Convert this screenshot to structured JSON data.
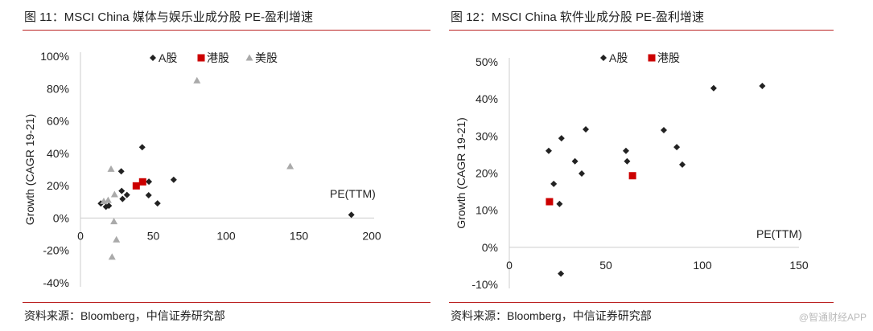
{
  "chart_data": [
    {
      "type": "scatter",
      "title": "图 11：MSCI China 媒体与娱乐业成分股 PE-盈利增速",
      "xlabel": "PE(TTM)",
      "ylabel": "Growth (CAGR 19-21)",
      "xlim": [
        0,
        200
      ],
      "ylim": [
        -40,
        100
      ],
      "xticks": [
        0,
        50,
        100,
        150,
        200
      ],
      "yticks": [
        -40,
        -20,
        0,
        20,
        40,
        60,
        80,
        100
      ],
      "ytick_labels": [
        "-40%",
        "-20%",
        "0%",
        "20%",
        "40%",
        "60%",
        "80%",
        "100%"
      ],
      "legend_position": "top",
      "series": [
        {
          "name": "A股",
          "color": "#222222",
          "marker": "diamond",
          "points": [
            [
              42.4,
              43.8
            ],
            [
              28,
              28.9
            ],
            [
              47,
              22.5
            ],
            [
              64,
              23.7
            ],
            [
              28.3,
              16.8
            ],
            [
              31.9,
              14.3
            ],
            [
              28.9,
              11.8
            ],
            [
              46.8,
              14.1
            ],
            [
              52.9,
              9.1
            ],
            [
              14,
              9
            ],
            [
              17.5,
              7
            ],
            [
              19.5,
              7.6
            ],
            [
              186,
              2
            ]
          ]
        },
        {
          "name": "港股",
          "color": "#cc0000",
          "marker": "square",
          "points": [
            [
              38.3,
              19.9
            ],
            [
              42.7,
              22.4
            ]
          ]
        },
        {
          "name": "美股",
          "color": "#aaaaaa",
          "marker": "triangle",
          "points": [
            [
              21,
              30.3
            ],
            [
              23.4,
              14.6
            ],
            [
              16,
              10.4
            ],
            [
              19,
              11.1
            ],
            [
              23,
              -2.1
            ],
            [
              24.7,
              -13.3
            ],
            [
              21.7,
              -24
            ],
            [
              80,
              85
            ],
            [
              144,
              32
            ]
          ]
        }
      ]
    },
    {
      "type": "scatter",
      "title": "图 12：MSCI China 软件业成分股 PE-盈利增速",
      "xlabel": "PE(TTM)",
      "ylabel": "Growth (CAGR 19-21)",
      "xlim": [
        0,
        150
      ],
      "ylim": [
        -10,
        50
      ],
      "xticks": [
        0,
        50,
        100,
        150
      ],
      "yticks": [
        -10,
        0,
        10,
        20,
        30,
        40,
        50
      ],
      "ytick_labels": [
        "-10%",
        "0%",
        "10%",
        "20%",
        "30%",
        "40%",
        "50%"
      ],
      "legend_position": "top",
      "series": [
        {
          "name": "A股",
          "color": "#222222",
          "marker": "diamond",
          "points": [
            [
              20.4,
              26
            ],
            [
              23,
              17.1
            ],
            [
              26,
              11.7
            ],
            [
              27,
              29.4
            ],
            [
              34,
              23.2
            ],
            [
              37.5,
              19.9
            ],
            [
              39.6,
              31.8
            ],
            [
              60.4,
              26
            ],
            [
              61,
              23.2
            ],
            [
              80,
              31.6
            ],
            [
              86.7,
              27
            ],
            [
              89.6,
              22.3
            ],
            [
              105.8,
              42.9
            ],
            [
              131,
              43.5
            ],
            [
              26.7,
              -7.1
            ]
          ]
        },
        {
          "name": "港股",
          "color": "#cc0000",
          "marker": "square",
          "points": [
            [
              20.8,
              12.3
            ],
            [
              63.8,
              19.3
            ]
          ]
        }
      ]
    }
  ],
  "source": "资料来源：Bloomberg，中信证券研究部",
  "watermark": "@智通财经APP"
}
